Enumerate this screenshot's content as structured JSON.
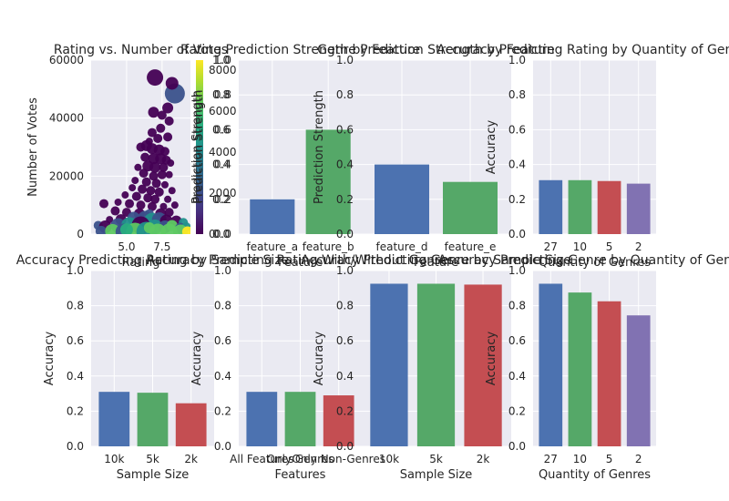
{
  "colors": {
    "figure_bg": "#ffffff",
    "axes_bg": "#eaeaf2",
    "grid": "#ffffff",
    "text": "#262626",
    "palette": [
      "#4c72b0",
      "#55a868",
      "#c44e52",
      "#8172b2"
    ]
  },
  "chart_data": [
    {
      "type": "scatter",
      "title": "Rating vs. Number of Votes",
      "xlabel": "Rating",
      "ylabel": "Number of Votes",
      "xticks": [
        "5.0",
        "7.5"
      ],
      "yticks": [
        "0",
        "20000",
        "40000",
        "60000"
      ],
      "xlim": [
        2.5,
        9.5
      ],
      "ylim": [
        0,
        60000
      ],
      "grid": true,
      "colormap": "viridis",
      "note_points": "approximate sample of plotted points; point color encodes prediction strength, point size encodes count",
      "points": [
        [
          7.0,
          54000,
          0.05,
          9
        ],
        [
          8.4,
          48500,
          0.3,
          11
        ],
        [
          8.2,
          52000,
          0.05,
          7
        ],
        [
          6.9,
          42000,
          0.05,
          6
        ],
        [
          7.9,
          43500,
          0.05,
          6
        ],
        [
          7.5,
          41000,
          0.05,
          5
        ],
        [
          8.0,
          39000,
          0.05,
          5
        ],
        [
          7.4,
          36500,
          0.05,
          5
        ],
        [
          6.8,
          35000,
          0.05,
          5
        ],
        [
          7.2,
          33000,
          0.05,
          5
        ],
        [
          6.6,
          32000,
          0.05,
          4
        ],
        [
          7.9,
          33500,
          0.05,
          5
        ],
        [
          6.0,
          30000,
          0.05,
          5
        ],
        [
          6.4,
          30500,
          0.05,
          6
        ],
        [
          6.8,
          29500,
          0.05,
          6
        ],
        [
          7.3,
          29000,
          0.05,
          6
        ],
        [
          7.7,
          28500,
          0.05,
          5
        ],
        [
          6.3,
          26500,
          0.05,
          5
        ],
        [
          6.9,
          26000,
          0.05,
          6
        ],
        [
          7.4,
          26000,
          0.05,
          6
        ],
        [
          7.8,
          25500,
          0.05,
          5
        ],
        [
          6.5,
          23500,
          0.05,
          6
        ],
        [
          7.0,
          23000,
          0.05,
          6
        ],
        [
          7.6,
          23000,
          0.05,
          5
        ],
        [
          8.1,
          24500,
          0.05,
          4
        ],
        [
          5.8,
          23000,
          0.05,
          4
        ],
        [
          6.2,
          21000,
          0.05,
          5
        ],
        [
          6.9,
          20000,
          0.05,
          5
        ],
        [
          7.5,
          20500,
          0.05,
          5
        ],
        [
          8.0,
          20500,
          0.05,
          4
        ],
        [
          5.6,
          18500,
          0.05,
          4
        ],
        [
          6.4,
          18000,
          0.05,
          5
        ],
        [
          7.1,
          17500,
          0.05,
          5
        ],
        [
          7.7,
          17000,
          0.05,
          4
        ],
        [
          5.4,
          16000,
          0.05,
          4
        ],
        [
          6.1,
          15500,
          0.05,
          5
        ],
        [
          6.7,
          15000,
          0.05,
          5
        ],
        [
          7.3,
          14500,
          0.05,
          5
        ],
        [
          8.2,
          15000,
          0.05,
          4
        ],
        [
          4.9,
          13500,
          0.05,
          4
        ],
        [
          5.7,
          13000,
          0.05,
          5
        ],
        [
          6.5,
          12500,
          0.05,
          5
        ],
        [
          7.0,
          12000,
          0.05,
          5
        ],
        [
          7.9,
          12000,
          0.05,
          4
        ],
        [
          3.4,
          10500,
          0.05,
          5
        ],
        [
          4.4,
          11000,
          0.05,
          4
        ],
        [
          5.2,
          10500,
          0.05,
          5
        ],
        [
          6.0,
          10000,
          0.05,
          5
        ],
        [
          6.8,
          9500,
          0.05,
          5
        ],
        [
          7.6,
          9500,
          0.05,
          4
        ],
        [
          8.4,
          10000,
          0.05,
          4
        ],
        [
          4.2,
          8000,
          0.05,
          5
        ],
        [
          5.0,
          7500,
          0.05,
          5
        ],
        [
          5.9,
          7000,
          0.05,
          6
        ],
        [
          6.6,
          7000,
          0.3,
          5
        ],
        [
          7.4,
          7000,
          0.05,
          6
        ],
        [
          8.0,
          7500,
          0.05,
          5
        ],
        [
          3.8,
          5000,
          0.05,
          4
        ],
        [
          4.6,
          5000,
          0.05,
          6
        ],
        [
          5.5,
          5500,
          0.3,
          7
        ],
        [
          6.3,
          5500,
          0.3,
          8
        ],
        [
          6.8,
          4500,
          0.5,
          9
        ],
        [
          7.3,
          5000,
          0.3,
          8
        ],
        [
          7.8,
          4500,
          0.05,
          7
        ],
        [
          8.5,
          4500,
          0.05,
          6
        ],
        [
          9.0,
          4000,
          0.5,
          5
        ],
        [
          3.0,
          3000,
          0.3,
          5
        ],
        [
          3.5,
          2500,
          0.05,
          7
        ],
        [
          4.4,
          3000,
          0.3,
          8
        ],
        [
          5.2,
          3000,
          0.5,
          9
        ],
        [
          6.0,
          3000,
          0.05,
          10
        ],
        [
          7.0,
          2500,
          0.5,
          8
        ],
        [
          7.7,
          2500,
          0.3,
          7
        ],
        [
          8.2,
          3000,
          0.7,
          6
        ],
        [
          8.8,
          2000,
          0.3,
          6
        ],
        [
          9.2,
          2500,
          0.5,
          5
        ],
        [
          3.2,
          1000,
          0.3,
          6
        ],
        [
          4.0,
          1000,
          0.7,
          8
        ],
        [
          4.8,
          800,
          0.3,
          9
        ],
        [
          5.6,
          800,
          0.7,
          10
        ],
        [
          6.4,
          800,
          0.5,
          11
        ],
        [
          7.2,
          800,
          0.8,
          9
        ],
        [
          8.0,
          800,
          0.7,
          9
        ],
        [
          8.8,
          800,
          0.8,
          8
        ],
        [
          9.3,
          800,
          0.95,
          6
        ],
        [
          6.6,
          2200,
          0.8,
          6
        ],
        [
          5.0,
          1500,
          0.6,
          7
        ]
      ],
      "colorbar": {
        "label": "Prediction Strength",
        "ticks_left": [
          "0.0",
          "0.2",
          "0.4",
          "0.6",
          "0.8",
          "1.0"
        ],
        "ticks_right": [
          "0",
          "2000",
          "4000",
          "6000",
          "8000"
        ]
      }
    },
    {
      "type": "bar",
      "title": "Rating Prediction Strength by Feature",
      "xlabel": "Feature",
      "ylabel": "Prediction Strength",
      "categories": [
        "feature_a",
        "feature_b"
      ],
      "values": [
        0.2,
        0.6
      ],
      "ylim": [
        0,
        1.0
      ],
      "yticks": [
        "0.0",
        "0.2",
        "0.4",
        "0.6",
        "0.8",
        "1.0"
      ]
    },
    {
      "type": "bar",
      "title": "Genre Prediction Strength by Feature",
      "xlabel": "Feature",
      "ylabel": "Prediction Strength",
      "categories": [
        "feature_d",
        "feature_e"
      ],
      "values": [
        0.4,
        0.3
      ],
      "ylim": [
        0,
        1.0
      ],
      "yticks": [
        "0.0",
        "0.2",
        "0.4",
        "0.6",
        "0.8",
        "1.0"
      ]
    },
    {
      "type": "bar",
      "title": "Accuracy Predicting Rating by Quantity of Genres",
      "xlabel": "Quantity of Genres",
      "ylabel": "Accuracy",
      "categories": [
        "27",
        "10",
        "5",
        "2"
      ],
      "values": [
        0.31,
        0.31,
        0.305,
        0.29
      ],
      "ylim": [
        0,
        1.0
      ],
      "yticks": [
        "0.0",
        "0.2",
        "0.4",
        "0.6",
        "0.8",
        "1.0"
      ]
    },
    {
      "type": "bar",
      "title": "Accuracy Predicting Rating by Sample Size",
      "xlabel": "Sample Size",
      "ylabel": "Accuracy",
      "categories": [
        "10k",
        "5k",
        "2k"
      ],
      "values": [
        0.31,
        0.305,
        0.245
      ],
      "ylim": [
        0,
        1.0
      ],
      "yticks": [
        "0.0",
        "0.2",
        "0.4",
        "0.6",
        "0.8",
        "1.0"
      ]
    },
    {
      "type": "bar",
      "title": "Accuracy Predicting Rating With/Without Genres",
      "xlabel": "Features",
      "ylabel": "Accuracy",
      "categories": [
        "All Features",
        "Only Genres",
        "Only Non-Genres"
      ],
      "values": [
        0.31,
        0.31,
        0.29
      ],
      "ylim": [
        0,
        1.0
      ],
      "yticks": [
        "0.0",
        "0.2",
        "0.4",
        "0.6",
        "0.8",
        "1.0"
      ]
    },
    {
      "type": "bar",
      "title": "Accuracy Predicting Genre by Sample Size",
      "xlabel": "Sample Size",
      "ylabel": "Accuracy",
      "categories": [
        "10k",
        "5k",
        "2k"
      ],
      "values": [
        0.925,
        0.925,
        0.92
      ],
      "ylim": [
        0,
        1.0
      ],
      "yticks": [
        "0.0",
        "0.2",
        "0.4",
        "0.6",
        "0.8",
        "1.0"
      ]
    },
    {
      "type": "bar",
      "title": "Accuracy Predicting Genre by Quantity of Genres",
      "xlabel": "Quantity of Genres",
      "ylabel": "Accuracy",
      "categories": [
        "27",
        "10",
        "5",
        "2"
      ],
      "values": [
        0.925,
        0.875,
        0.825,
        0.745
      ],
      "ylim": [
        0,
        1.0
      ],
      "yticks": [
        "0.0",
        "0.2",
        "0.4",
        "0.6",
        "0.8",
        "1.0"
      ]
    }
  ]
}
